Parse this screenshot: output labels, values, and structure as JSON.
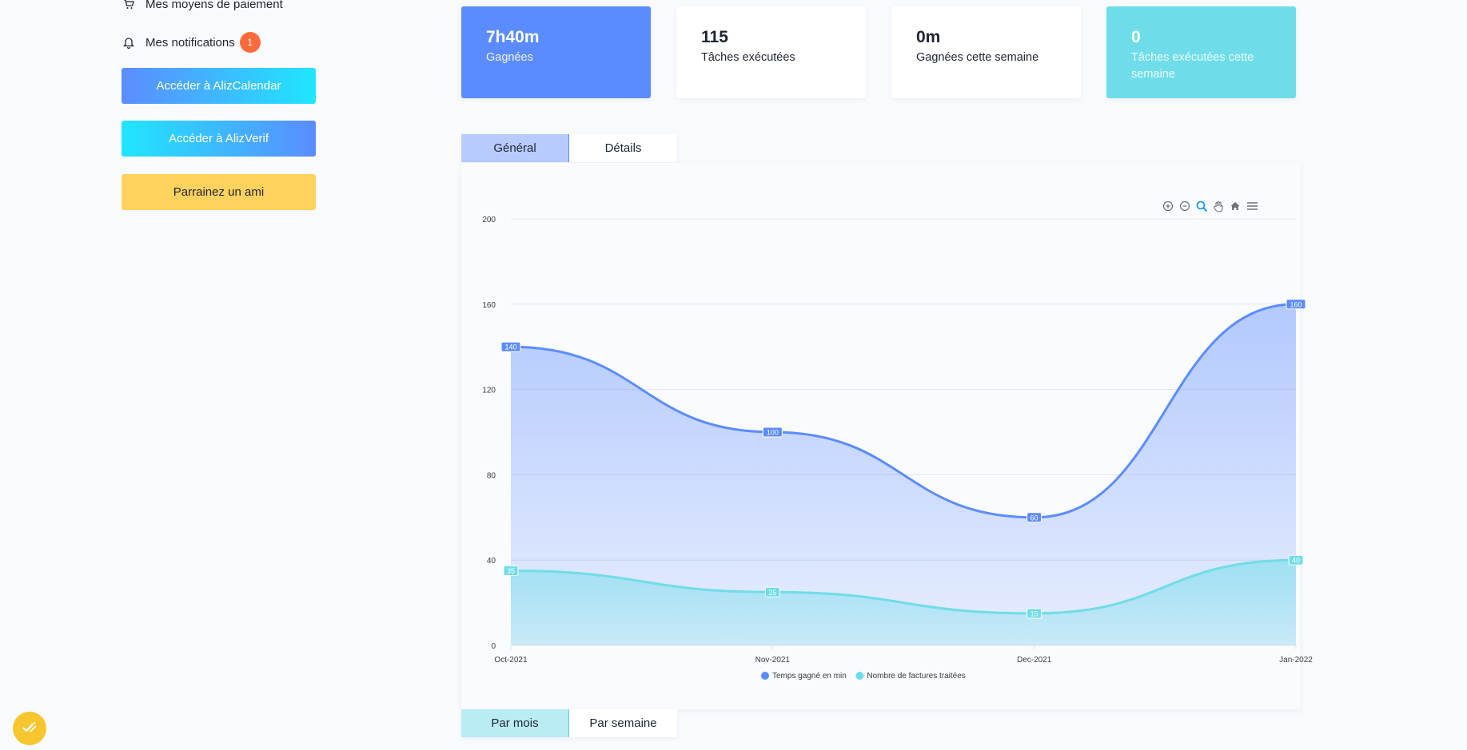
{
  "sidebar": {
    "payment_label": "Mes moyens de paiement",
    "notifications_label": "Mes notifications",
    "notifications_count": "1",
    "btn_calendar": "Accéder à AlizCalendar",
    "btn_verif": "Accéder à AlizVerif",
    "btn_parrain": "Parrainez un ami"
  },
  "stats": [
    {
      "value": "7h40m",
      "label": "Gagnées"
    },
    {
      "value": "115",
      "label": "Tâches exécutées"
    },
    {
      "value": "0m",
      "label": "Gagnées cette semaine"
    },
    {
      "value": "0",
      "label": "Tâches exécutées cette semaine"
    }
  ],
  "tabs_top": [
    "Général",
    "Détails"
  ],
  "tabs_bottom": [
    "Par mois",
    "Par semaine"
  ],
  "colors": {
    "primary": "#5b8cff",
    "secondary": "#6fdde9",
    "accent": "#ffd25e",
    "badge": "#ff6a3d"
  },
  "chart_data": {
    "type": "area",
    "categories": [
      "Oct-2021",
      "Nov-2021",
      "Dec-2021",
      "Jan-2022"
    ],
    "series": [
      {
        "name": "Temps gagné en min",
        "values": [
          140,
          100,
          60,
          160
        ],
        "color": "#5b8cff"
      },
      {
        "name": "Nombre de factures traitées",
        "values": [
          35,
          25,
          15,
          40
        ],
        "color": "#6fdde9"
      }
    ],
    "ylim": [
      0,
      200
    ],
    "yticks": [
      0,
      40,
      80,
      120,
      160,
      200
    ],
    "grid": true,
    "legend": "bottom-center",
    "data_labels": true
  }
}
